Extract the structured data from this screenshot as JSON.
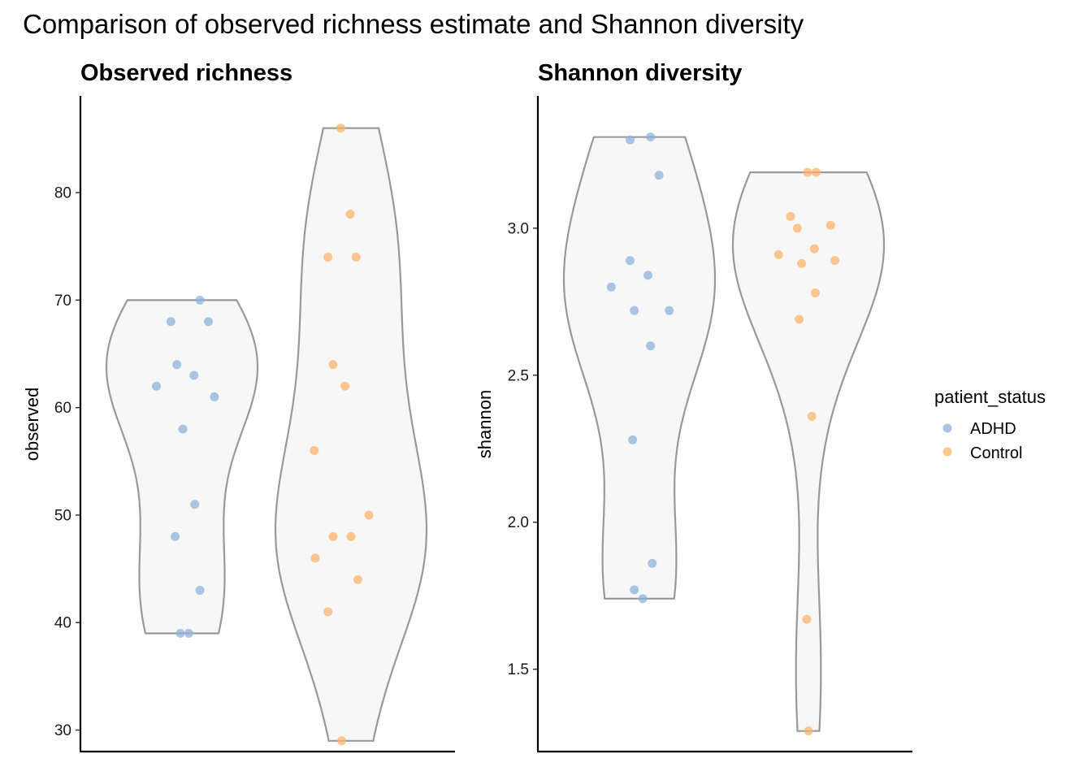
{
  "title": "Comparison of observed richness estimate and Shannon diversity",
  "legend": {
    "title": "patient_status",
    "items": [
      {
        "label": "ADHD",
        "color": "#8fb1dc"
      },
      {
        "label": "Control",
        "color": "#fdb46e"
      }
    ]
  },
  "chart_data": [
    {
      "type": "violin",
      "title": "Observed richness",
      "xlabel": "",
      "ylabel": "observed",
      "ylim": [
        28,
        89
      ],
      "yticks": [
        30,
        40,
        50,
        60,
        70,
        80
      ],
      "ytick_labels": [
        "30",
        "40",
        "50",
        "60",
        "70",
        "80"
      ],
      "groups": [
        {
          "name": "ADHD",
          "range": [
            39,
            70
          ],
          "points": [
            {
              "x": -0.3,
              "y": 62
            },
            {
              "x": -0.13,
              "y": 68
            },
            {
              "x": -0.06,
              "y": 64
            },
            {
              "x": 0.01,
              "y": 58
            },
            {
              "x": -0.08,
              "y": 48
            },
            {
              "x": 0.14,
              "y": 63
            },
            {
              "x": 0.15,
              "y": 51
            },
            {
              "x": 0.21,
              "y": 70
            },
            {
              "x": 0.31,
              "y": 68
            },
            {
              "x": 0.38,
              "y": 61
            },
            {
              "x": 0.21,
              "y": 43
            },
            {
              "x": -0.02,
              "y": 39
            },
            {
              "x": 0.08,
              "y": 39
            }
          ]
        },
        {
          "name": "Control",
          "range": [
            29,
            86
          ],
          "points": [
            {
              "x": -0.12,
              "y": 86
            },
            {
              "x": -0.01,
              "y": 78
            },
            {
              "x": -0.27,
              "y": 74
            },
            {
              "x": 0.06,
              "y": 74
            },
            {
              "x": -0.21,
              "y": 64
            },
            {
              "x": -0.07,
              "y": 62
            },
            {
              "x": -0.43,
              "y": 56
            },
            {
              "x": 0.21,
              "y": 50
            },
            {
              "x": -0.42,
              "y": 46
            },
            {
              "x": -0.21,
              "y": 48
            },
            {
              "x": -0.0,
              "y": 48
            },
            {
              "x": 0.08,
              "y": 44
            },
            {
              "x": -0.27,
              "y": 41
            },
            {
              "x": -0.11,
              "y": 29
            }
          ]
        }
      ]
    },
    {
      "type": "violin",
      "title": "Shannon diversity",
      "xlabel": "",
      "ylabel": "shannon",
      "ylim": [
        1.22,
        3.45
      ],
      "yticks": [
        1.5,
        2.0,
        2.5,
        3.0
      ],
      "ytick_labels": [
        "1.5",
        "2.0",
        "2.5",
        "3.0"
      ],
      "groups": [
        {
          "name": "ADHD",
          "range": [
            1.74,
            3.31
          ],
          "points": [
            {
              "x": -0.11,
              "y": 3.3
            },
            {
              "x": 0.13,
              "y": 3.31
            },
            {
              "x": 0.23,
              "y": 3.18
            },
            {
              "x": -0.11,
              "y": 2.89
            },
            {
              "x": -0.33,
              "y": 2.8
            },
            {
              "x": 0.1,
              "y": 2.84
            },
            {
              "x": -0.06,
              "y": 2.72
            },
            {
              "x": 0.35,
              "y": 2.72
            },
            {
              "x": 0.13,
              "y": 2.6
            },
            {
              "x": -0.08,
              "y": 2.28
            },
            {
              "x": 0.15,
              "y": 1.86
            },
            {
              "x": -0.06,
              "y": 1.77
            },
            {
              "x": 0.04,
              "y": 1.74
            }
          ]
        },
        {
          "name": "Control",
          "range": [
            1.29,
            3.19
          ],
          "points": [
            {
              "x": -0.01,
              "y": 3.19
            },
            {
              "x": 0.09,
              "y": 3.19
            },
            {
              "x": -0.21,
              "y": 3.04
            },
            {
              "x": -0.13,
              "y": 3.0
            },
            {
              "x": 0.26,
              "y": 3.01
            },
            {
              "x": -0.35,
              "y": 2.91
            },
            {
              "x": 0.07,
              "y": 2.93
            },
            {
              "x": -0.08,
              "y": 2.88
            },
            {
              "x": 0.31,
              "y": 2.89
            },
            {
              "x": 0.08,
              "y": 2.78
            },
            {
              "x": -0.11,
              "y": 2.69
            },
            {
              "x": 0.04,
              "y": 2.36
            },
            {
              "x": -0.02,
              "y": 1.67
            },
            {
              "x": 0.0,
              "y": 1.29
            }
          ]
        }
      ]
    }
  ]
}
